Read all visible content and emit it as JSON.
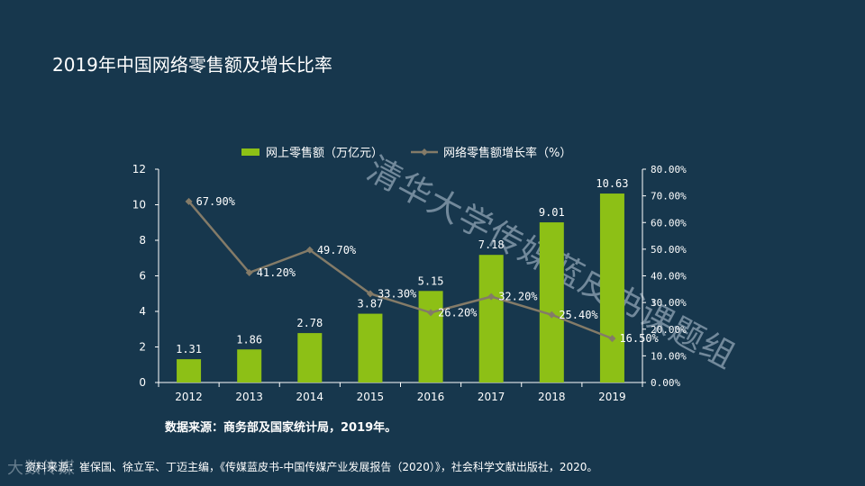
{
  "title": "2019年中国网络零售额及增长比率",
  "watermark": "清华大学传媒蓝皮书课题组",
  "source": "数据来源：商务部及国家统计局，2019年。",
  "reference": "资料来源：崔保国、徐立军、丁迈主编，《传媒蓝皮书-中国传媒产业发展报告（2020）》，社会科学文献出版社，2020。",
  "logo_text": "大数传媒",
  "colors": {
    "bar": "#8dc016",
    "line": "#847b68",
    "axis": "#ffffff",
    "background": "#17374d"
  },
  "chart_data": {
    "type": "bar",
    "categories": [
      "2012",
      "2013",
      "2014",
      "2015",
      "2016",
      "2017",
      "2018",
      "2019"
    ],
    "series": [
      {
        "name": "网上零售额（万亿元）",
        "kind": "bar",
        "axis": "left",
        "values": [
          1.31,
          1.86,
          2.78,
          3.87,
          5.15,
          7.18,
          9.01,
          10.63
        ],
        "labels": [
          "1.31",
          "1.86",
          "2.78",
          "3.87",
          "5.15",
          "7.18",
          "9.01",
          "10.63"
        ]
      },
      {
        "name": "网络零售额增长率（%）",
        "kind": "line",
        "axis": "right",
        "values": [
          67.9,
          41.2,
          49.7,
          33.3,
          26.2,
          32.2,
          25.4,
          16.5
        ],
        "labels": [
          "67.90%",
          "41.20%",
          "49.70%",
          "33.30%",
          "26.20%",
          "32.20%",
          "25.40%",
          "16.50%"
        ]
      }
    ],
    "y_left": {
      "min": 0,
      "max": 12,
      "ticks": [
        "0",
        "2",
        "4",
        "6",
        "8",
        "10",
        "12"
      ]
    },
    "y_right": {
      "min": 0,
      "max": 80,
      "ticks": [
        "0.00%",
        "10.00%",
        "20.00%",
        "30.00%",
        "40.00%",
        "50.00%",
        "60.00%",
        "70.00%",
        "80.00%"
      ]
    },
    "legend_position": "top",
    "grid": false
  }
}
